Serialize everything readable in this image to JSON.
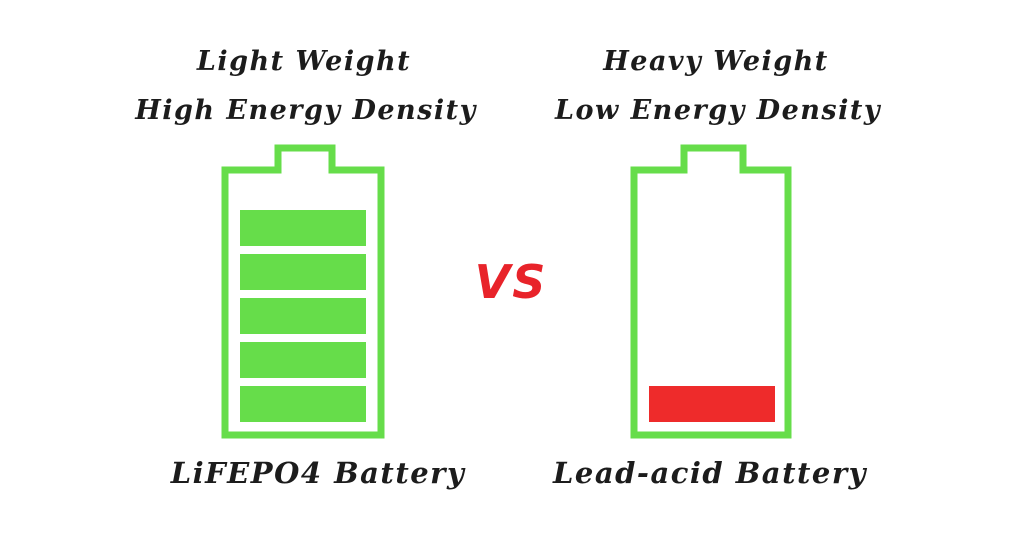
{
  "colors": {
    "battery_outline": "#66dd4a",
    "full_cell": "#66dd4a",
    "low_charge": "#ee2b2b",
    "vs_text": "#e8232a",
    "caption_text": "#1c1c1c",
    "background": "#ffffff"
  },
  "left": {
    "line1": "Light Weight",
    "line2": "High Energy Density",
    "name": "LiFEPO4 Battery",
    "icon": "battery-full-icon",
    "charge_bars": 5
  },
  "vs_label": "VS",
  "right": {
    "line1": "Heavy Weight",
    "line2": "Low Energy Density",
    "name": "Lead-acid Battery",
    "icon": "battery-low-icon",
    "charge_bars": 1
  }
}
